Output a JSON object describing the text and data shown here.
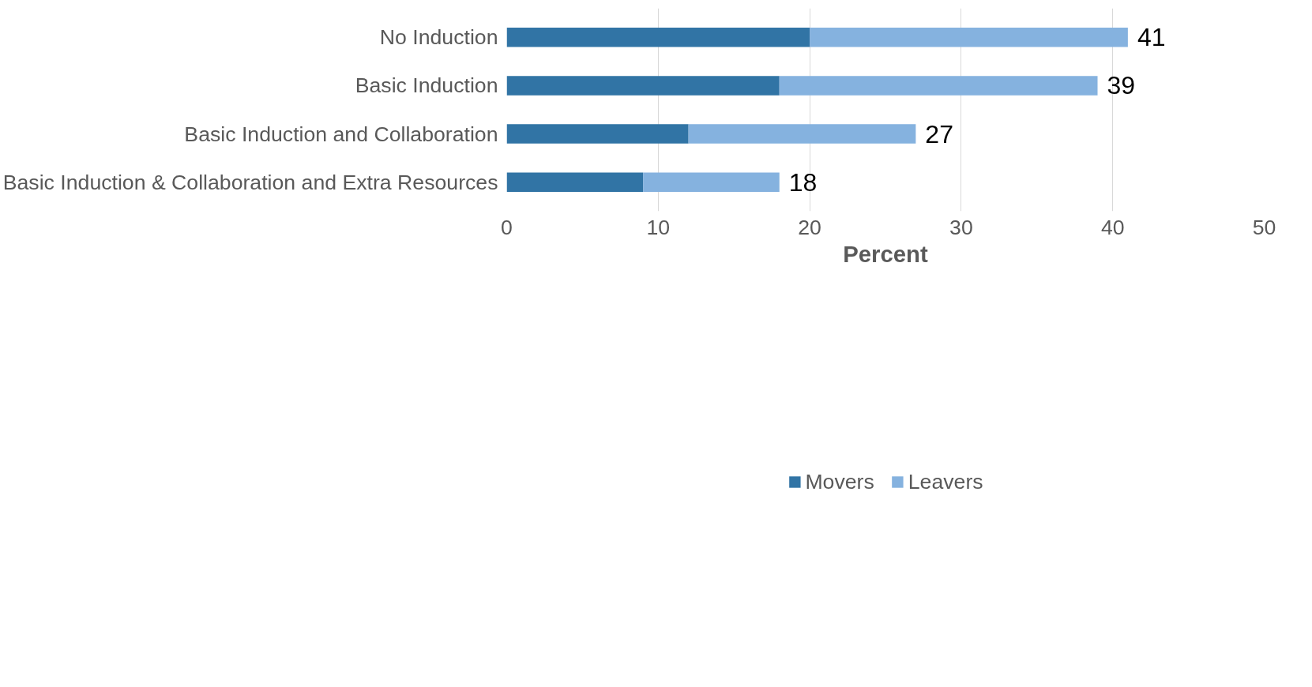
{
  "chart_data": {
    "type": "bar",
    "orientation": "horizontal",
    "stacked": true,
    "xlabel": "Percent",
    "categories": [
      "No Induction",
      "Basic Induction",
      "Basic Induction and Collaboration",
      "Basic Induction & Collaboration and Extra Resources"
    ],
    "series": [
      {
        "name": "Movers",
        "color": "#3174a5",
        "values": [
          20,
          18,
          12,
          9
        ]
      },
      {
        "name": "Leavers",
        "color": "#85b2df",
        "values": [
          21,
          21,
          15,
          9
        ]
      }
    ],
    "totals": [
      "41",
      "39",
      "27",
      "18"
    ],
    "xlim": [
      0,
      50
    ],
    "xticks": [
      0,
      10,
      20,
      30,
      40,
      50
    ],
    "grid": "x",
    "legend": "bottom"
  }
}
